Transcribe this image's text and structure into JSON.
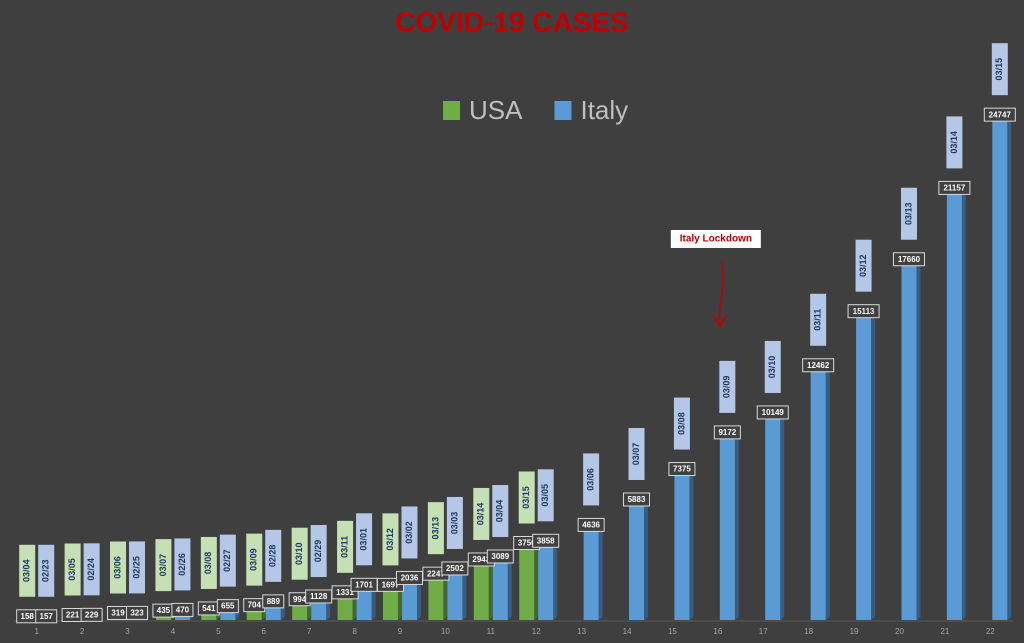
{
  "chart_data": {
    "type": "bar",
    "title": "COVID-19 CASES",
    "categories": [
      "1",
      "2",
      "3",
      "4",
      "5",
      "6",
      "7",
      "8",
      "9",
      "10",
      "11",
      "12",
      "13",
      "14",
      "15",
      "16",
      "17",
      "18",
      "19",
      "20",
      "21",
      "22"
    ],
    "series": [
      {
        "name": "USA",
        "color": "#70ad47",
        "values": [
          158,
          221,
          319,
          435,
          541,
          704,
          994,
          1331,
          1697,
          2247,
          2943,
          3750,
          null,
          null,
          null,
          null,
          null,
          null,
          null,
          null,
          null,
          null
        ],
        "date_labels": [
          "03/04",
          "03/05",
          "03/06",
          "03/07",
          "03/08",
          "03/09",
          "03/10",
          "03/11",
          "03/12",
          "03/13",
          "03/14",
          "03/15",
          null,
          null,
          null,
          null,
          null,
          null,
          null,
          null,
          null,
          null
        ]
      },
      {
        "name": "Italy",
        "color": "#5b9bd5",
        "values": [
          157,
          229,
          323,
          470,
          655,
          889,
          1128,
          1701,
          2036,
          2502,
          3089,
          3858,
          4636,
          5883,
          7375,
          9172,
          10149,
          12462,
          15113,
          17660,
          21157,
          24747
        ],
        "date_labels": [
          "02/23",
          "02/24",
          "02/25",
          "02/26",
          "02/27",
          "02/28",
          "02/29",
          "03/01",
          "03/02",
          "03/03",
          "03/04",
          "03/05",
          "03/06",
          "03/07",
          "03/08",
          "03/09",
          "03/10",
          "03/11",
          "03/12",
          "03/13",
          "03/14",
          "03/15"
        ]
      }
    ],
    "annotations": [
      {
        "text": "Italy Lockdown",
        "category": "16"
      }
    ],
    "ylim": [
      0,
      30000
    ],
    "legend": "top",
    "grid": false
  }
}
